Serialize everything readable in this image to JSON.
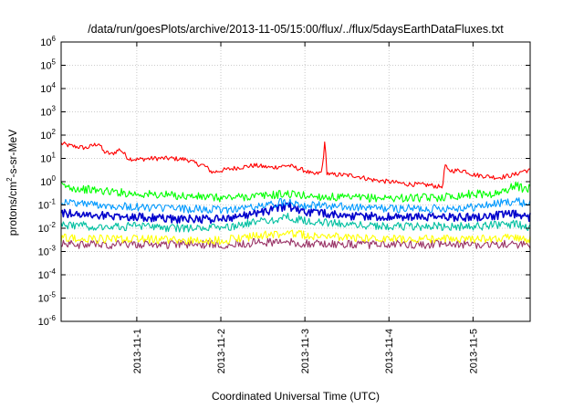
{
  "chart_data": {
    "type": "line",
    "title": "/data/run/goesPlots/archive/2013-11-05/15:00/flux/../flux/5daysEarthDataFluxes.txt",
    "xlabel": "Coordinated Universal Time (UTC)",
    "ylabel": "protons/cm²-s-sr-MeV",
    "ylabel_parts": {
      "pre": "protons/cm",
      "sup": "2",
      "post": "-s-sr-MeV"
    },
    "yscale": "log",
    "ylim_exp": [
      -6,
      6
    ],
    "y_ticks": [
      {
        "base": "10",
        "exp": "-6",
        "value_exp": -6
      },
      {
        "base": "10",
        "exp": "-5",
        "value_exp": -5
      },
      {
        "base": "10",
        "exp": "-4",
        "value_exp": -4
      },
      {
        "base": "10",
        "exp": "-3",
        "value_exp": -3
      },
      {
        "base": "10",
        "exp": "-2",
        "value_exp": -2
      },
      {
        "base": "10",
        "exp": "-1",
        "value_exp": -1
      },
      {
        "base": "10",
        "exp": "0",
        "value_exp": 0
      },
      {
        "base": "10",
        "exp": "1",
        "value_exp": 1
      },
      {
        "base": "10",
        "exp": "2",
        "value_exp": 2
      },
      {
        "base": "10",
        "exp": "3",
        "value_exp": 3
      },
      {
        "base": "10",
        "exp": "4",
        "value_exp": 4
      },
      {
        "base": "10",
        "exp": "5",
        "value_exp": 5
      },
      {
        "base": "10",
        "exp": "6",
        "value_exp": 6
      }
    ],
    "xlim_days": [
      0,
      5
    ],
    "x_ticks": [
      {
        "label": "2013-11-1",
        "day": 1.0
      },
      {
        "label": "2013-11-2",
        "day": 2.0
      },
      {
        "label": "2013-11-3",
        "day": 3.0
      },
      {
        "label": "2013-11-4",
        "day": 4.0
      },
      {
        "label": "2013-11-5",
        "day": 5.0
      }
    ],
    "x_range_dates": [
      "2013-10-31 15:00",
      "2013-11-05 16:00"
    ],
    "grid": true,
    "series": [
      {
        "color": "#ff0000",
        "x": [
          0.0,
          0.2,
          0.4,
          0.55,
          0.6,
          0.7,
          0.8,
          0.9,
          1.0,
          1.2,
          1.4,
          1.6,
          1.7,
          1.8,
          1.9,
          2.0,
          2.2,
          2.4,
          2.6,
          2.8,
          3.0,
          3.1,
          3.2,
          3.24,
          3.26,
          3.3,
          3.4,
          3.6,
          3.8,
          4.0,
          4.2,
          4.5,
          4.6,
          4.65,
          4.66,
          4.7,
          4.9,
          5.0,
          5.3,
          5.5,
          5.6
        ],
        "y": [
          55,
          35,
          28,
          45,
          20,
          15,
          25,
          10,
          9,
          10,
          10,
          9,
          6,
          5,
          2.5,
          3,
          4,
          5,
          4,
          5,
          3,
          2,
          2.5,
          60,
          2.5,
          2,
          2,
          1.8,
          1.2,
          1.0,
          0.8,
          0.7,
          0.6,
          0.7,
          6,
          3,
          3,
          2,
          1.5,
          2,
          3
        ]
      },
      {
        "color": "#00ff00",
        "x": [
          0.0,
          0.3,
          0.6,
          1.0,
          1.5,
          2.0,
          2.5,
          2.8,
          3.0,
          3.5,
          4.0,
          4.5,
          4.8,
          5.0,
          5.3,
          5.5,
          5.6
        ],
        "y": [
          0.8,
          0.5,
          0.4,
          0.3,
          0.25,
          0.2,
          0.25,
          0.3,
          0.25,
          0.2,
          0.2,
          0.2,
          0.25,
          0.3,
          0.3,
          0.7,
          0.5
        ]
      },
      {
        "color": "#0099ff",
        "x": [
          0.0,
          0.3,
          0.6,
          1.0,
          1.5,
          2.0,
          2.5,
          2.8,
          3.0,
          3.5,
          4.0,
          4.5,
          5.0,
          5.5,
          5.6
        ],
        "y": [
          0.15,
          0.12,
          0.1,
          0.08,
          0.07,
          0.06,
          0.09,
          0.15,
          0.1,
          0.08,
          0.07,
          0.07,
          0.08,
          0.15,
          0.12
        ]
      },
      {
        "color": "#0000cc",
        "x": [
          0.0,
          0.3,
          0.6,
          1.0,
          1.5,
          2.0,
          2.5,
          2.8,
          3.0,
          3.5,
          4.0,
          4.5,
          5.0,
          5.5,
          5.6
        ],
        "y": [
          0.05,
          0.04,
          0.035,
          0.03,
          0.025,
          0.025,
          0.05,
          0.09,
          0.05,
          0.035,
          0.03,
          0.03,
          0.03,
          0.04,
          0.03
        ]
      },
      {
        "color": "#00bfa0",
        "x": [
          0.0,
          0.5,
          1.0,
          1.5,
          2.0,
          2.5,
          2.8,
          3.0,
          3.5,
          4.0,
          4.5,
          5.0,
          5.5,
          5.6
        ],
        "y": [
          0.015,
          0.012,
          0.012,
          0.01,
          0.01,
          0.02,
          0.03,
          0.02,
          0.015,
          0.012,
          0.012,
          0.012,
          0.015,
          0.012
        ]
      },
      {
        "color": "#ffff00",
        "x": [
          0.0,
          0.5,
          1.0,
          1.5,
          2.0,
          2.5,
          2.8,
          3.0,
          3.5,
          4.0,
          4.5,
          5.0,
          5.5,
          5.6
        ],
        "y": [
          0.004,
          0.0035,
          0.0035,
          0.003,
          0.003,
          0.005,
          0.006,
          0.005,
          0.004,
          0.0035,
          0.0035,
          0.0035,
          0.004,
          0.0035
        ]
      },
      {
        "color": "#993366",
        "x": [
          0.0,
          0.5,
          1.0,
          1.5,
          2.0,
          2.5,
          2.8,
          3.0,
          3.5,
          4.0,
          4.5,
          5.0,
          5.5,
          5.6
        ],
        "y": [
          0.002,
          0.002,
          0.002,
          0.002,
          0.002,
          0.0025,
          0.0025,
          0.0022,
          0.002,
          0.002,
          0.002,
          0.002,
          0.002,
          0.002
        ]
      }
    ]
  }
}
